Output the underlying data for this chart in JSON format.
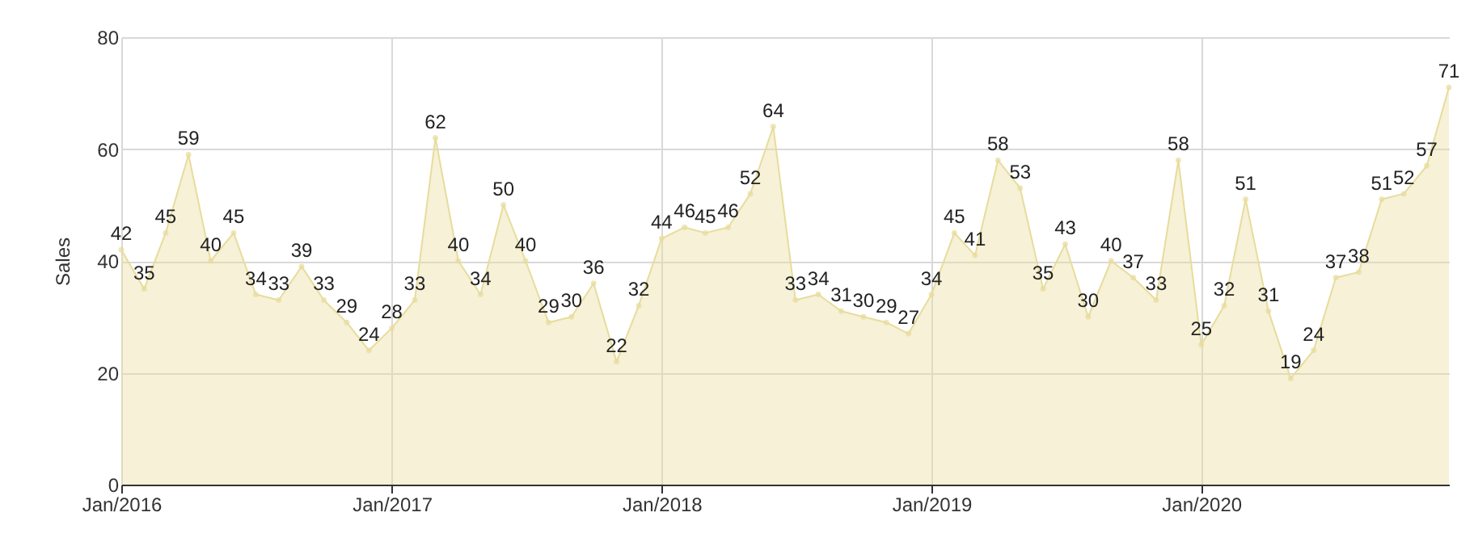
{
  "chart_data": {
    "type": "area",
    "ylabel": "Sales",
    "x": [
      "2016-01",
      "2016-02",
      "2016-03",
      "2016-04",
      "2016-05",
      "2016-06",
      "2016-07",
      "2016-08",
      "2016-09",
      "2016-10",
      "2016-11",
      "2016-12",
      "2017-01",
      "2017-02",
      "2017-03",
      "2017-04",
      "2017-05",
      "2017-06",
      "2017-07",
      "2017-08",
      "2017-09",
      "2017-10",
      "2017-11",
      "2017-12",
      "2018-01",
      "2018-02",
      "2018-03",
      "2018-04",
      "2018-05",
      "2018-06",
      "2018-07",
      "2018-08",
      "2018-09",
      "2018-10",
      "2018-11",
      "2018-12",
      "2019-01",
      "2019-02",
      "2019-03",
      "2019-04",
      "2019-05",
      "2019-06",
      "2019-07",
      "2019-08",
      "2019-09",
      "2019-10",
      "2019-11",
      "2019-12",
      "2020-01",
      "2020-02",
      "2020-03",
      "2020-04",
      "2020-05",
      "2020-06",
      "2020-07",
      "2020-08",
      "2020-09",
      "2020-10",
      "2020-11",
      "2020-12"
    ],
    "series": [
      {
        "color": "#e8dc9c",
        "values": [
          42,
          35,
          45,
          59,
          40,
          45,
          34,
          33,
          39,
          33,
          29,
          24,
          28,
          33,
          62,
          40,
          34,
          50,
          40,
          29,
          30,
          36,
          22,
          32,
          44,
          46,
          45,
          46,
          52,
          64,
          33,
          34,
          31,
          30,
          29,
          27,
          34,
          45,
          41,
          58,
          53,
          35,
          43,
          30,
          40,
          37,
          33,
          58,
          25,
          32,
          51,
          31,
          19,
          24,
          37,
          38,
          51,
          52,
          57,
          71
        ]
      }
    ],
    "xlim": [
      "2016-01",
      "2020-12"
    ],
    "xticks": [
      {
        "value": "2016-01",
        "label": "Jan/2016"
      },
      {
        "value": "2017-01",
        "label": "Jan/2017"
      },
      {
        "value": "2018-01",
        "label": "Jan/2018"
      },
      {
        "value": "2019-01",
        "label": "Jan/2019"
      },
      {
        "value": "2020-01",
        "label": "Jan/2020"
      }
    ],
    "ylim": [
      0,
      80
    ],
    "yticks": [
      0,
      20,
      40,
      60,
      80
    ],
    "grid": true,
    "marker": "circle",
    "data_labels": true
  }
}
